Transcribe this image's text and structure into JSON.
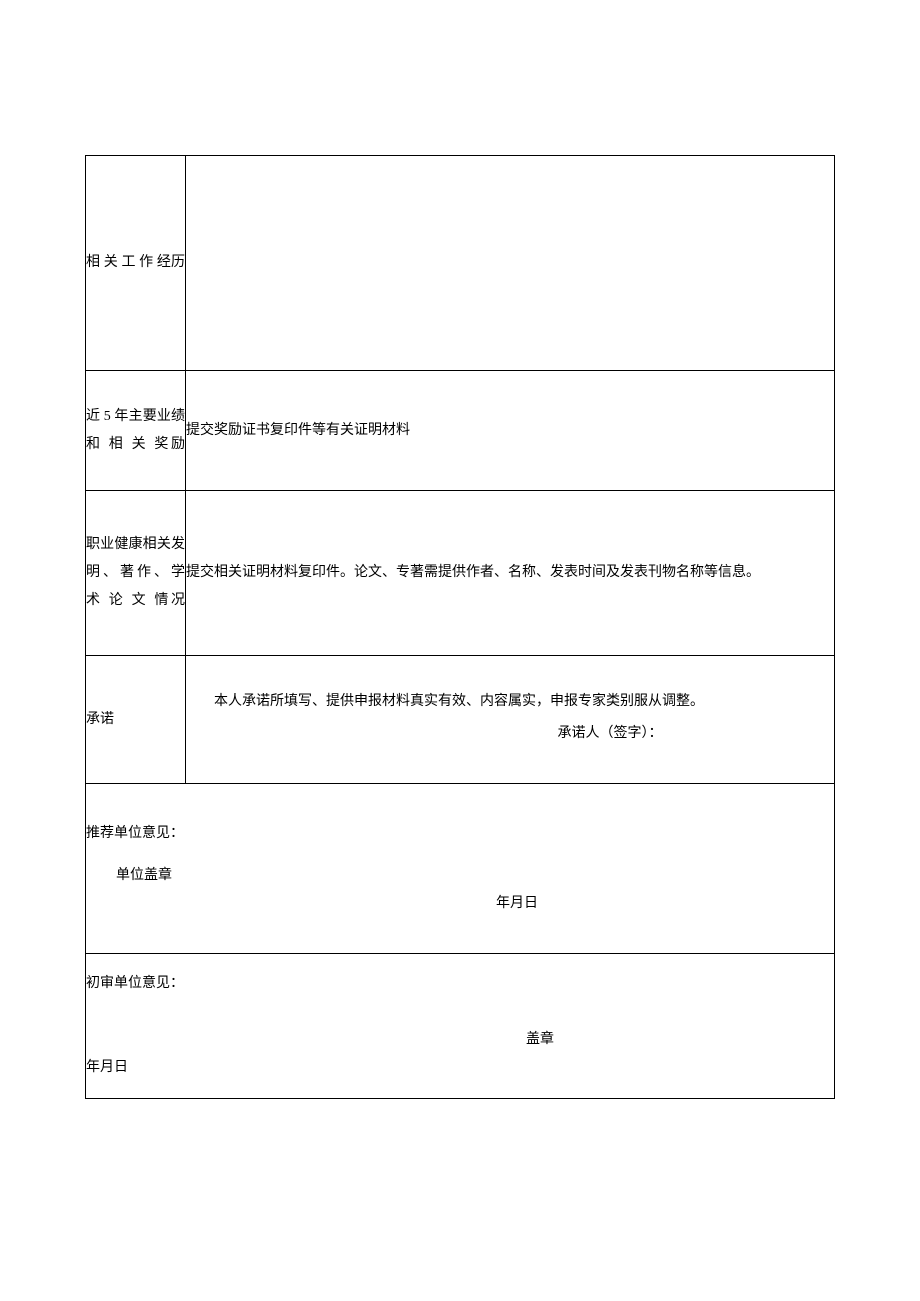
{
  "rows": {
    "work_experience": {
      "label": "相 关 工 作 经历",
      "content": ""
    },
    "achievements": {
      "label": "近 5 年主要业绩 和 相 关 奖励",
      "content": "提交奖励证书复印件等有关证明材料"
    },
    "publications": {
      "label": "职业健康相关发明、著作、学 术 论 文 情况",
      "content": "提交相关证明材料复印件。论文、专著需提供作者、名称、发表时间及发表刊物名称等信息。"
    },
    "commitment": {
      "label": "承诺",
      "body": "本人承诺所填写、提供申报材料真实有效、内容属实，申报专家类别服从调整。",
      "signature_label": "承诺人（签字）："
    },
    "recommendation": {
      "title": "推荐单位意见：",
      "stamp": "单位盖章",
      "date": "年月日"
    },
    "review": {
      "title": "初审单位意见：",
      "stamp": "盖章",
      "date": "年月日"
    }
  },
  "colors": {
    "border": "#000000",
    "background": "#ffffff",
    "text": "#000000"
  },
  "typography": {
    "font_family": "SimSun",
    "font_size": 14,
    "line_height": 2
  }
}
